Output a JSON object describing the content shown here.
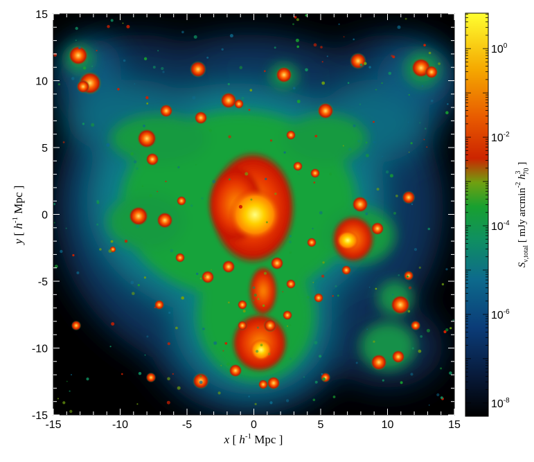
{
  "figure": {
    "type": "simulated radio emission map",
    "x_axis": {
      "label_var": "x",
      "label_unit_prefix": "[ ",
      "label_h": "h",
      "label_exp": "-1",
      "label_unit_suffix": " Mpc ]",
      "range": [
        -15,
        15
      ],
      "ticks": [
        "-15",
        "-10",
        "-5",
        "0",
        "5",
        "10",
        "15"
      ]
    },
    "y_axis": {
      "label_var": "y",
      "label_unit_prefix": "[ ",
      "label_h": "h",
      "label_exp": "-1",
      "label_unit_suffix": " Mpc ]",
      "range": [
        -15,
        15
      ],
      "ticks": [
        "15",
        "10",
        "5",
        "0",
        "-5",
        "-10",
        "-15"
      ]
    },
    "colorbar": {
      "scale": "log",
      "tick_base": "10",
      "tick_exponents": [
        "0",
        "-2",
        "-4",
        "-6",
        "-8"
      ],
      "title_S": "S",
      "title_sub": "ν,total",
      "title_unit_1": " [ mJy arcmin",
      "title_exp_1": "-2",
      "title_unit_h": " h",
      "title_exp_h": "3",
      "title_sub_h": "70",
      "title_unit_end": " ]",
      "colors": [
        "#000000",
        "#0b2060",
        "#0d5a8a",
        "#0f8a6a",
        "#18a030",
        "#6aa010",
        "#cc1a00",
        "#e85a00",
        "#f5a000",
        "#ffe000",
        "#ffff30"
      ]
    },
    "map": {
      "background": "#000000",
      "core_color": "#ffff60",
      "inner_color": "#ff9a00",
      "shell_color": "#d31a00",
      "filament_color": "#17a33a",
      "outer_color": "#0a7d8a",
      "deep_color": "#08305a"
    }
  }
}
